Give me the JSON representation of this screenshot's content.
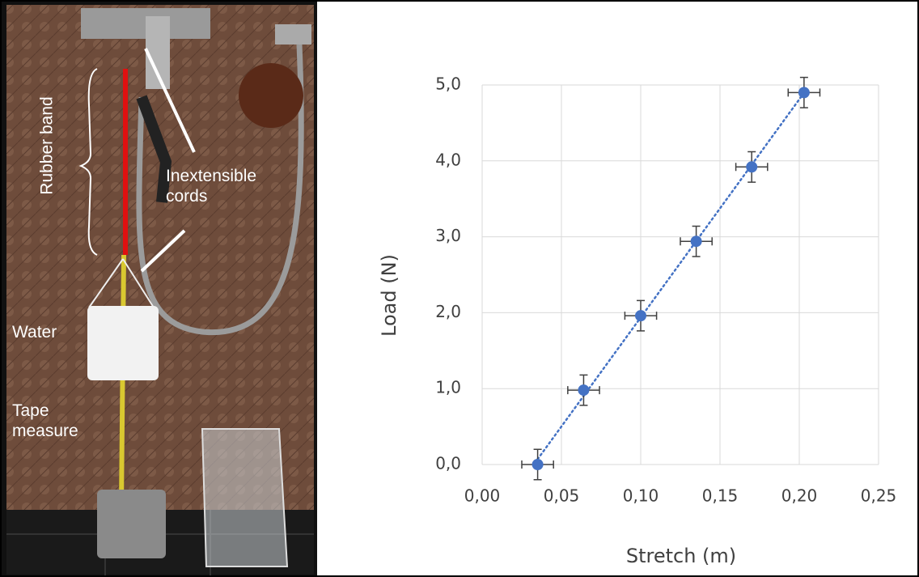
{
  "photo": {
    "labels": [
      "Rubber band",
      "Inextensible cords",
      "Water",
      "Tape measure"
    ]
  },
  "chart_data": {
    "type": "scatter",
    "x_label": "Stretch  (m)",
    "y_label": "Load (N)",
    "x": [
      0.035,
      0.064,
      0.1,
      0.135,
      0.17,
      0.203
    ],
    "series": [
      {
        "color": "#4472c4",
        "values": [
          0,
          0.98,
          1.96,
          2.94,
          3.92,
          4.9
        ],
        "x_errors": [
          0.01,
          0.01,
          0.01,
          0.01,
          0.01,
          0.01
        ],
        "y_errors": [
          0.2,
          0.2,
          0.2,
          0.2,
          0.2,
          0.2
        ]
      }
    ],
    "trendline": "linear",
    "grid": true,
    "xlim": [
      0,
      0.25
    ],
    "ylim": [
      0,
      5
    ],
    "xticks": [
      {
        "value": 0,
        "label": "0,00"
      },
      {
        "value": 0.05,
        "label": "0,05"
      },
      {
        "value": 0.1,
        "label": "0,10"
      },
      {
        "value": 0.15,
        "label": "0,15"
      },
      {
        "value": 0.2,
        "label": "0,20"
      },
      {
        "value": 0.25,
        "label": "0,25"
      }
    ],
    "yticks": [
      {
        "value": 0,
        "label": "0,0"
      },
      {
        "value": 1,
        "label": "1,0"
      },
      {
        "value": 2,
        "label": "2,0"
      },
      {
        "value": 3,
        "label": "3,0"
      },
      {
        "value": 4,
        "label": "4,0"
      },
      {
        "value": 5,
        "label": "5,0"
      }
    ]
  }
}
